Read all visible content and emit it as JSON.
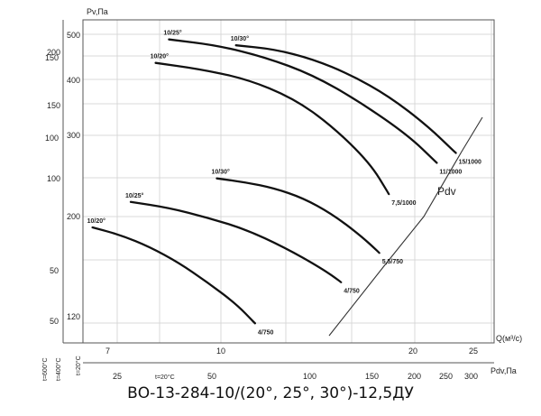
{
  "chart_data": {
    "type": "line",
    "y_axis_outer": {
      "label": "",
      "ticks": [
        "150",
        "100",
        "50"
      ]
    },
    "y_axis_inner": {
      "label": "Pv,Па",
      "ticks": [
        "500",
        "400",
        "300",
        "200",
        "120",
        "200",
        "150",
        "100",
        "50"
      ]
    },
    "x_axis_flow": {
      "label": "Q(м³/с)",
      "ticks": [
        "7",
        "10",
        "20",
        "25"
      ]
    },
    "x_axis_pdv": {
      "label": "Pdv,Па",
      "ticks": [
        "25",
        "50",
        "100",
        "150",
        "200",
        "250",
        "300"
      ]
    },
    "temperature_labels": [
      "t=600°C",
      "t=400°C",
      "t=20°C",
      "t=20°C"
    ],
    "pdv_label": "Pdv",
    "series": [
      {
        "name": "10/20°",
        "end_label": "4/750",
        "points": [
          [
            6.0,
            79
          ],
          [
            7.5,
            75
          ],
          [
            9.0,
            69
          ],
          [
            10.5,
            61
          ],
          [
            12.0,
            51
          ],
          [
            13.5,
            40
          ],
          [
            14.5,
            30
          ]
        ]
      },
      {
        "name": "10/25°",
        "end_label": "4/750",
        "points": [
          [
            8.0,
            92
          ],
          [
            10.0,
            89
          ],
          [
            12.0,
            84
          ],
          [
            14.0,
            78
          ],
          [
            16.0,
            69
          ],
          [
            18.0,
            58
          ],
          [
            19.0,
            51
          ]
        ]
      },
      {
        "name": "10/30°",
        "end_label": "5,5/750",
        "points": [
          [
            12.5,
            104
          ],
          [
            14.0,
            102
          ],
          [
            15.5,
            99
          ],
          [
            17.0,
            94
          ],
          [
            18.5,
            86
          ],
          [
            20.0,
            75
          ],
          [
            21.0,
            66
          ]
        ]
      },
      {
        "name": "10/20°",
        "end_label": "7,5/1000",
        "points": [
          [
            9.3,
            163
          ],
          [
            11.5,
            160
          ],
          [
            14.0,
            155
          ],
          [
            16.5,
            145
          ],
          [
            18.5,
            131
          ],
          [
            20.5,
            112
          ],
          [
            21.5,
            96
          ]
        ]
      },
      {
        "name": "10/25°",
        "end_label": "11/1000",
        "points": [
          [
            10.0,
            175
          ],
          [
            12.5,
            172
          ],
          [
            15.0,
            166
          ],
          [
            17.5,
            157
          ],
          [
            20.0,
            143
          ],
          [
            22.5,
            126
          ],
          [
            24.0,
            112
          ]
        ]
      },
      {
        "name": "10/30°",
        "end_label": "15/1000",
        "points": [
          [
            13.5,
            172
          ],
          [
            15.5,
            170
          ],
          [
            17.5,
            165
          ],
          [
            19.5,
            157
          ],
          [
            21.5,
            146
          ],
          [
            23.5,
            131
          ],
          [
            25.0,
            117
          ]
        ]
      }
    ],
    "grid": true
  },
  "caption": "ВО-13-284-10/(20°, 25°, 30°)-12,5ДУ"
}
